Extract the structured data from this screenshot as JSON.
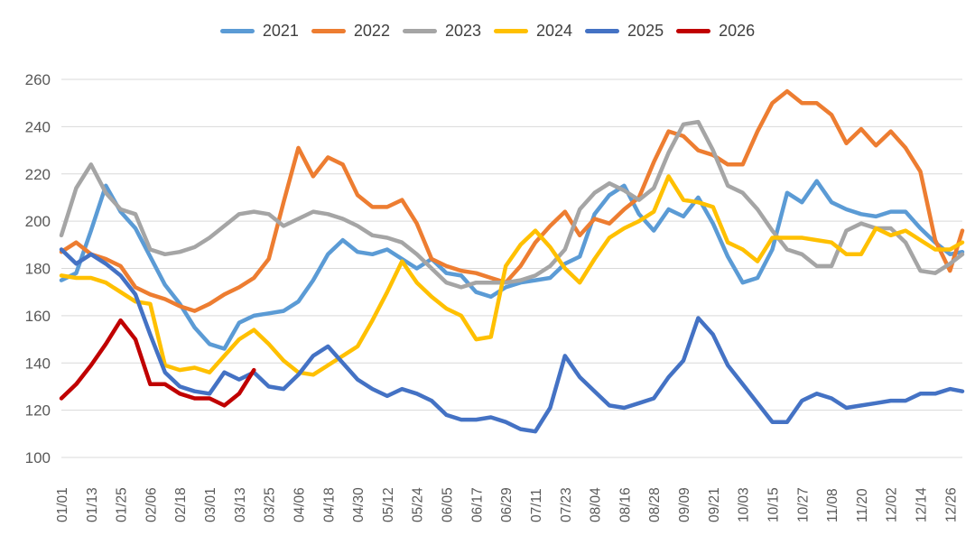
{
  "chart_data": {
    "type": "line",
    "title": "",
    "xlabel": "",
    "ylabel": "",
    "ylim": [
      100,
      260
    ],
    "y_tick_step": 20,
    "y_ticks": [
      100,
      120,
      140,
      160,
      180,
      200,
      220,
      240,
      260
    ],
    "grid": true,
    "legend_position": "top",
    "x_tick_labels": [
      "01/01",
      "01/13",
      "01/25",
      "02/06",
      "02/18",
      "03/01",
      "03/13",
      "03/25",
      "04/06",
      "04/18",
      "04/30",
      "05/12",
      "05/24",
      "06/05",
      "06/17",
      "06/29",
      "07/11",
      "07/23",
      "08/04",
      "08/16",
      "08/28",
      "09/09",
      "09/21",
      "10/03",
      "10/15",
      "10/27",
      "11/08",
      "11/20",
      "12/02",
      "12/14",
      "12/26"
    ],
    "x": [
      "01/01",
      "01/07",
      "01/13",
      "01/19",
      "01/25",
      "01/31",
      "02/06",
      "02/12",
      "02/18",
      "02/24",
      "03/01",
      "03/07",
      "03/13",
      "03/19",
      "03/25",
      "03/31",
      "04/06",
      "04/12",
      "04/18",
      "04/24",
      "04/30",
      "05/06",
      "05/12",
      "05/18",
      "05/24",
      "05/30",
      "06/05",
      "06/11",
      "06/17",
      "06/23",
      "06/29",
      "07/05",
      "07/11",
      "07/17",
      "07/23",
      "07/29",
      "08/04",
      "08/10",
      "08/16",
      "08/22",
      "08/28",
      "09/03",
      "09/09",
      "09/15",
      "09/21",
      "09/27",
      "10/03",
      "10/09",
      "10/15",
      "10/21",
      "10/27",
      "11/02",
      "11/08",
      "11/14",
      "11/20",
      "11/26",
      "12/02",
      "12/08",
      "12/14",
      "12/20",
      "12/26",
      "12/31"
    ],
    "series": [
      {
        "name": "2021",
        "color": "#5B9BD5",
        "values": [
          175,
          178,
          196,
          215,
          204,
          197,
          185,
          173,
          165,
          155,
          148,
          146,
          157,
          160,
          161,
          162,
          166,
          175,
          186,
          192,
          187,
          186,
          188,
          184,
          180,
          184,
          178,
          177,
          170,
          168,
          172,
          174,
          175,
          176,
          182,
          185,
          203,
          211,
          215,
          203,
          196,
          205,
          202,
          210,
          199,
          185,
          174,
          176,
          188,
          212,
          208,
          217,
          208,
          205,
          203,
          202,
          204,
          204,
          197,
          191,
          186,
          187
        ]
      },
      {
        "name": "2022",
        "color": "#ED7D31",
        "values": [
          187,
          191,
          186,
          184,
          181,
          172,
          169,
          167,
          164,
          162,
          165,
          169,
          172,
          176,
          184,
          208,
          231,
          219,
          227,
          224,
          211,
          206,
          206,
          209,
          199,
          184,
          181,
          179,
          178,
          176,
          174,
          181,
          191,
          198,
          204,
          194,
          201,
          199,
          205,
          210,
          225,
          238,
          236,
          230,
          228,
          224,
          224,
          238,
          250,
          255,
          250,
          250,
          245,
          233,
          239,
          232,
          238,
          231,
          221,
          192,
          179,
          196
        ]
      },
      {
        "name": "2023",
        "color": "#A5A5A5",
        "values": [
          194,
          214,
          224,
          212,
          205,
          203,
          188,
          186,
          187,
          189,
          193,
          198,
          203,
          204,
          203,
          198,
          201,
          204,
          203,
          201,
          198,
          194,
          193,
          191,
          186,
          180,
          174,
          172,
          174,
          174,
          174,
          175,
          177,
          181,
          188,
          205,
          212,
          216,
          213,
          209,
          214,
          229,
          241,
          242,
          230,
          215,
          212,
          205,
          196,
          188,
          186,
          181,
          181,
          196,
          199,
          197,
          197,
          191,
          179,
          178,
          182,
          186
        ]
      },
      {
        "name": "2024",
        "color": "#FFC000",
        "values": [
          177,
          176,
          176,
          174,
          170,
          166,
          165,
          139,
          137,
          138,
          136,
          143,
          150,
          154,
          148,
          141,
          136,
          135,
          139,
          143,
          147,
          158,
          170,
          183,
          174,
          168,
          163,
          160,
          150,
          151,
          181,
          190,
          196,
          189,
          180,
          174,
          184,
          193,
          197,
          200,
          204,
          219,
          209,
          208,
          206,
          191,
          188,
          183,
          193,
          193,
          193,
          192,
          191,
          186,
          186,
          197,
          194,
          196,
          192,
          188,
          188,
          191
        ]
      },
      {
        "name": "2025",
        "color": "#4472C4",
        "values": [
          188,
          182,
          186,
          182,
          177,
          169,
          152,
          136,
          130,
          128,
          127,
          136,
          133,
          136,
          130,
          129,
          135,
          143,
          147,
          140,
          133,
          129,
          126,
          129,
          127,
          124,
          118,
          116,
          116,
          117,
          115,
          112,
          111,
          121,
          143,
          134,
          128,
          122,
          121,
          123,
          125,
          134,
          141,
          159,
          152,
          139,
          131,
          123,
          115,
          115,
          124,
          127,
          125,
          121,
          122,
          123,
          124,
          124,
          127,
          127,
          129,
          128
        ]
      },
      {
        "name": "2026",
        "color": "#C00000",
        "values": [
          125,
          131,
          139,
          148,
          158,
          150,
          131,
          131,
          127,
          125,
          125,
          122,
          127,
          137,
          null,
          null,
          null,
          null,
          null,
          null,
          null,
          null,
          null,
          null,
          null,
          null,
          null,
          null,
          null,
          null,
          null,
          null,
          null,
          null,
          null,
          null,
          null,
          null,
          null,
          null,
          null,
          null,
          null,
          null,
          null,
          null,
          null,
          null,
          null,
          null,
          null,
          null,
          null,
          null,
          null,
          null,
          null,
          null,
          null,
          null,
          null,
          null
        ]
      }
    ]
  },
  "legend": {
    "items": [
      "2021",
      "2022",
      "2023",
      "2024",
      "2025",
      "2026"
    ]
  }
}
